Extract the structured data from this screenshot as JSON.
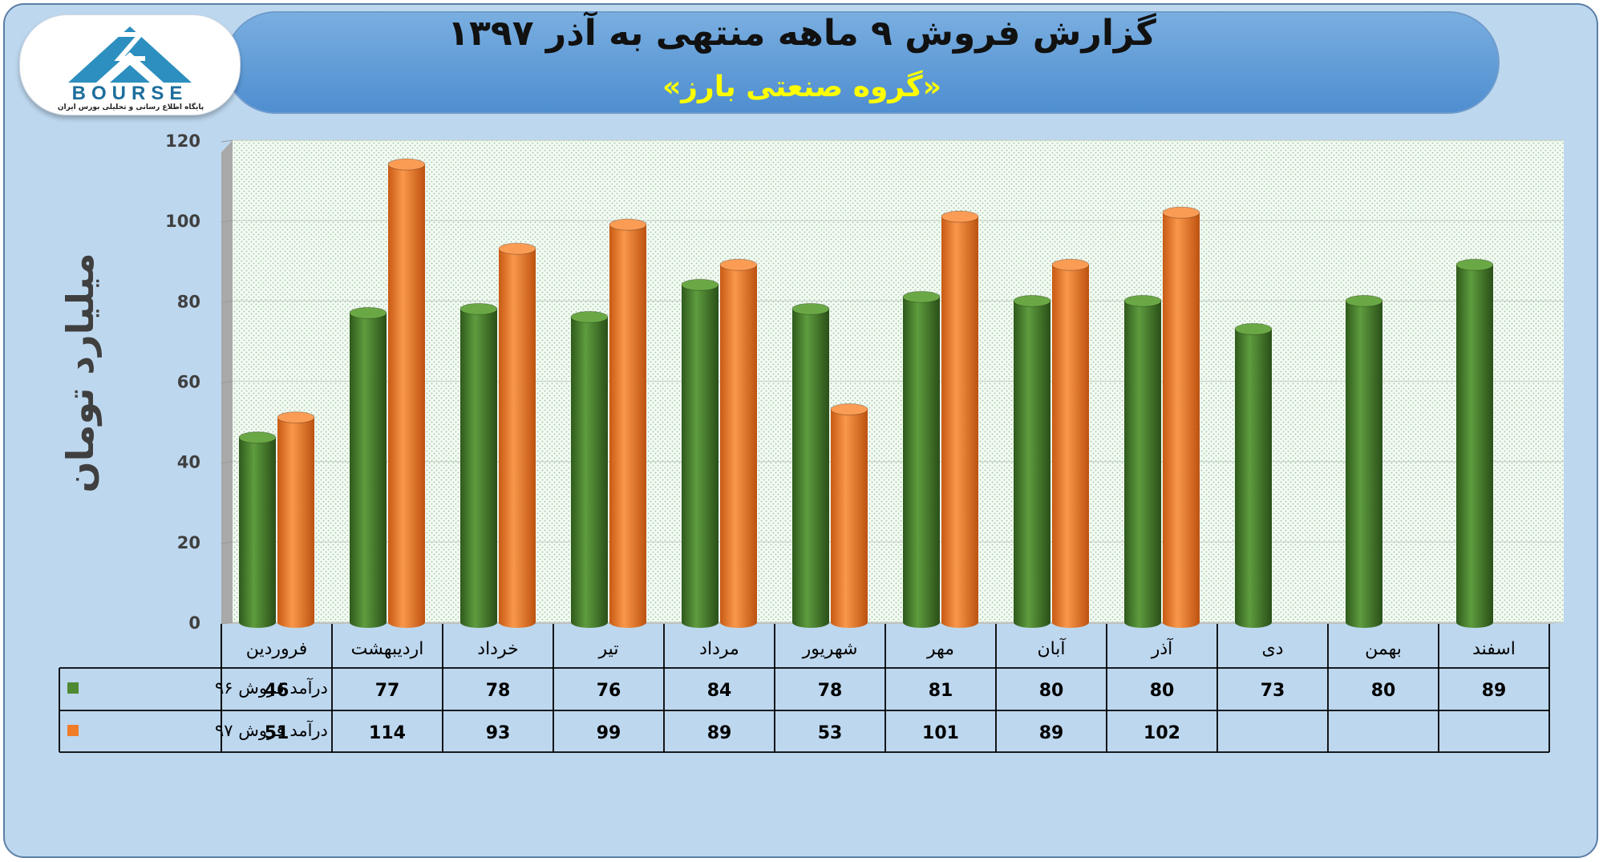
{
  "header": {
    "title": "گزارش فروش ۹ ماهه منتهی به آذر ۱۳۹۷",
    "subtitle": "«گروه صنعتی بارز»"
  },
  "logo": {
    "word": "BOURSE",
    "caption": "پایگاه اطلاع رسانی و تحلیلی بورس ایران"
  },
  "colors": {
    "series_96": "#4e8a32",
    "series_97": "#f07c28",
    "background": "#bdd7ee",
    "banner": "#5b9bd5"
  },
  "chart_data": {
    "type": "bar",
    "title": "گزارش فروش ۹ ماهه منتهی به آذر ۱۳۹۷",
    "ylabel": "میلیارد تومان",
    "ylim": [
      0,
      120
    ],
    "yticks": [
      0,
      20,
      40,
      60,
      80,
      100,
      120
    ],
    "grid": true,
    "legend": "data-table-left",
    "categories": [
      "فروردین",
      "اردیبهشت",
      "خرداد",
      "تیر",
      "مرداد",
      "شهریور",
      "مهر",
      "آبان",
      "آذر",
      "دی",
      "بهمن",
      "اسفند"
    ],
    "series": [
      {
        "name": "درآمد فروش ۹۶",
        "color": "#4e8a32",
        "values": [
          46,
          77,
          78,
          76,
          84,
          78,
          81,
          80,
          80,
          73,
          80,
          89
        ]
      },
      {
        "name": "درآمد فروش ۹۷",
        "color": "#f07c28",
        "values": [
          51,
          114,
          93,
          99,
          89,
          53,
          101,
          89,
          102,
          null,
          null,
          null
        ]
      }
    ]
  }
}
